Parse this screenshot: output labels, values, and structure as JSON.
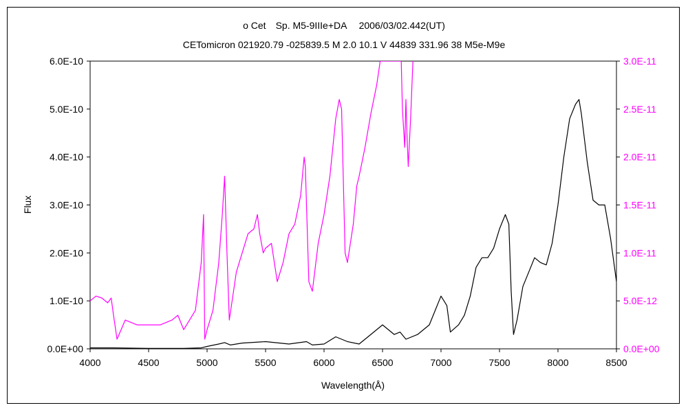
{
  "chart_data": {
    "type": "line",
    "title": "ο Cet　Sp. M5-9IIIe+DA　 2006/03/02.442(UT)",
    "subtitle": "CETomicron 021920.79 -025839.5 M 2.0 10.1 V 44839 331.96 38 M5e-M9e",
    "xlabel": "Wavelength(Å)",
    "ylabel": "Flux",
    "xlim": [
      4000,
      8500
    ],
    "ylim": [
      0,
      6e-10
    ],
    "y2lim": [
      0,
      3e-11
    ],
    "grid": false,
    "legend": "none",
    "x_ticks": [
      4000,
      4500,
      5000,
      5500,
      6000,
      6500,
      7000,
      7500,
      8000,
      8500
    ],
    "x_tick_labels": [
      "4000",
      "4500",
      "5000",
      "5500",
      "6000",
      "6500",
      "7000",
      "7500",
      "8000",
      "8500"
    ],
    "y_ticks": [
      0,
      1e-10,
      2e-10,
      3e-10,
      4e-10,
      5e-10,
      6e-10
    ],
    "y_tick_labels": [
      "0.0E+00",
      "1.0E-10",
      "2.0E-10",
      "3.0E-10",
      "4.0E-10",
      "5.0E-10",
      "6.0E-10"
    ],
    "y2_ticks": [
      0,
      5e-12,
      1e-11,
      1.5e-11,
      2e-11,
      2.5e-11,
      3e-11
    ],
    "y2_tick_labels": [
      "0.0E+00",
      "5.0E-12",
      "1.0E-11",
      "1.5E-11",
      "2.0E-11",
      "2.5E-11",
      "3.0E-11"
    ],
    "series": [
      {
        "axis": "left",
        "color": "#000000",
        "x": [
          4000,
          4200,
          4500,
          4800,
          4950,
          5000,
          5100,
          5150,
          5200,
          5300,
          5500,
          5700,
          5850,
          5900,
          6000,
          6100,
          6150,
          6200,
          6300,
          6400,
          6500,
          6550,
          6600,
          6650,
          6700,
          6800,
          6900,
          6950,
          7000,
          7050,
          7080,
          7150,
          7200,
          7250,
          7300,
          7350,
          7400,
          7450,
          7500,
          7550,
          7580,
          7600,
          7620,
          7650,
          7700,
          7750,
          7800,
          7850,
          7900,
          7950,
          8000,
          8050,
          8100,
          8150,
          8180,
          8200,
          8250,
          8300,
          8350,
          8400,
          8450,
          8500
        ],
        "y": [
          2e-12,
          2e-12,
          1e-12,
          1e-12,
          2e-12,
          5e-12,
          1e-11,
          1.3e-11,
          8e-12,
          1.2e-11,
          1.5e-11,
          1e-11,
          1.5e-11,
          8e-12,
          1e-11,
          2.5e-11,
          2e-11,
          1.5e-11,
          1e-11,
          3e-11,
          5e-11,
          4e-11,
          3e-11,
          3.5e-11,
          2e-11,
          3e-11,
          5e-11,
          8e-11,
          1.1e-10,
          9e-11,
          3.5e-11,
          5e-11,
          7e-11,
          1.1e-10,
          1.7e-10,
          1.9e-10,
          1.9e-10,
          2.1e-10,
          2.5e-10,
          2.8e-10,
          2.6e-10,
          1.2e-10,
          3e-11,
          6e-11,
          1.3e-10,
          1.6e-10,
          1.9e-10,
          1.8e-10,
          1.75e-10,
          2.2e-10,
          3e-10,
          4e-10,
          4.8e-10,
          5.1e-10,
          5.2e-10,
          4.9e-10,
          3.9e-10,
          3.1e-10,
          3e-10,
          3e-10,
          2.3e-10,
          1.4e-10
        ]
      },
      {
        "axis": "right",
        "color": "#ff00ff",
        "x": [
          4000,
          4050,
          4100,
          4150,
          4180,
          4200,
          4230,
          4300,
          4400,
          4500,
          4600,
          4700,
          4750,
          4800,
          4850,
          4900,
          4950,
          4970,
          4980,
          5000,
          5050,
          5100,
          5130,
          5150,
          5170,
          5190,
          5250,
          5300,
          5350,
          5400,
          5430,
          5450,
          5480,
          5500,
          5550,
          5600,
          5650,
          5700,
          5750,
          5800,
          5830,
          5840,
          5870,
          5900,
          5950,
          6000,
          6050,
          6100,
          6130,
          6150,
          6180,
          6200,
          6250,
          6280,
          6300,
          6350,
          6400,
          6450,
          6480,
          6500,
          6660,
          6670,
          6690,
          6700,
          6710,
          6720,
          6740,
          6760
        ],
        "y": [
          5e-12,
          5.5e-12,
          5.3e-12,
          4.8e-12,
          5.3e-12,
          3.5e-12,
          1e-12,
          3e-12,
          2.5e-12,
          2.5e-12,
          2.5e-12,
          3e-12,
          3.5e-12,
          2e-12,
          3e-12,
          4e-12,
          9e-12,
          1.4e-11,
          1e-12,
          2e-12,
          4e-12,
          9e-12,
          1.4e-11,
          1.8e-11,
          1e-11,
          3e-12,
          8e-12,
          1e-11,
          1.2e-11,
          1.25e-11,
          1.4e-11,
          1.2e-11,
          1e-11,
          1.05e-11,
          1.1e-11,
          7e-12,
          9e-12,
          1.2e-11,
          1.3e-11,
          1.6e-11,
          2e-11,
          1.9e-11,
          7e-12,
          6e-12,
          1.1e-11,
          1.4e-11,
          1.8e-11,
          2.4e-11,
          2.6e-11,
          2.5e-11,
          1e-11,
          9e-12,
          1.3e-11,
          1.7e-11,
          1.8e-11,
          2.1e-11,
          2.45e-11,
          2.75e-11,
          3e-11,
          3e-11,
          3e-11,
          2.5e-11,
          2.1e-11,
          2.6e-11,
          2.2e-11,
          1.9e-11,
          2.4e-11,
          3e-11
        ]
      }
    ]
  }
}
